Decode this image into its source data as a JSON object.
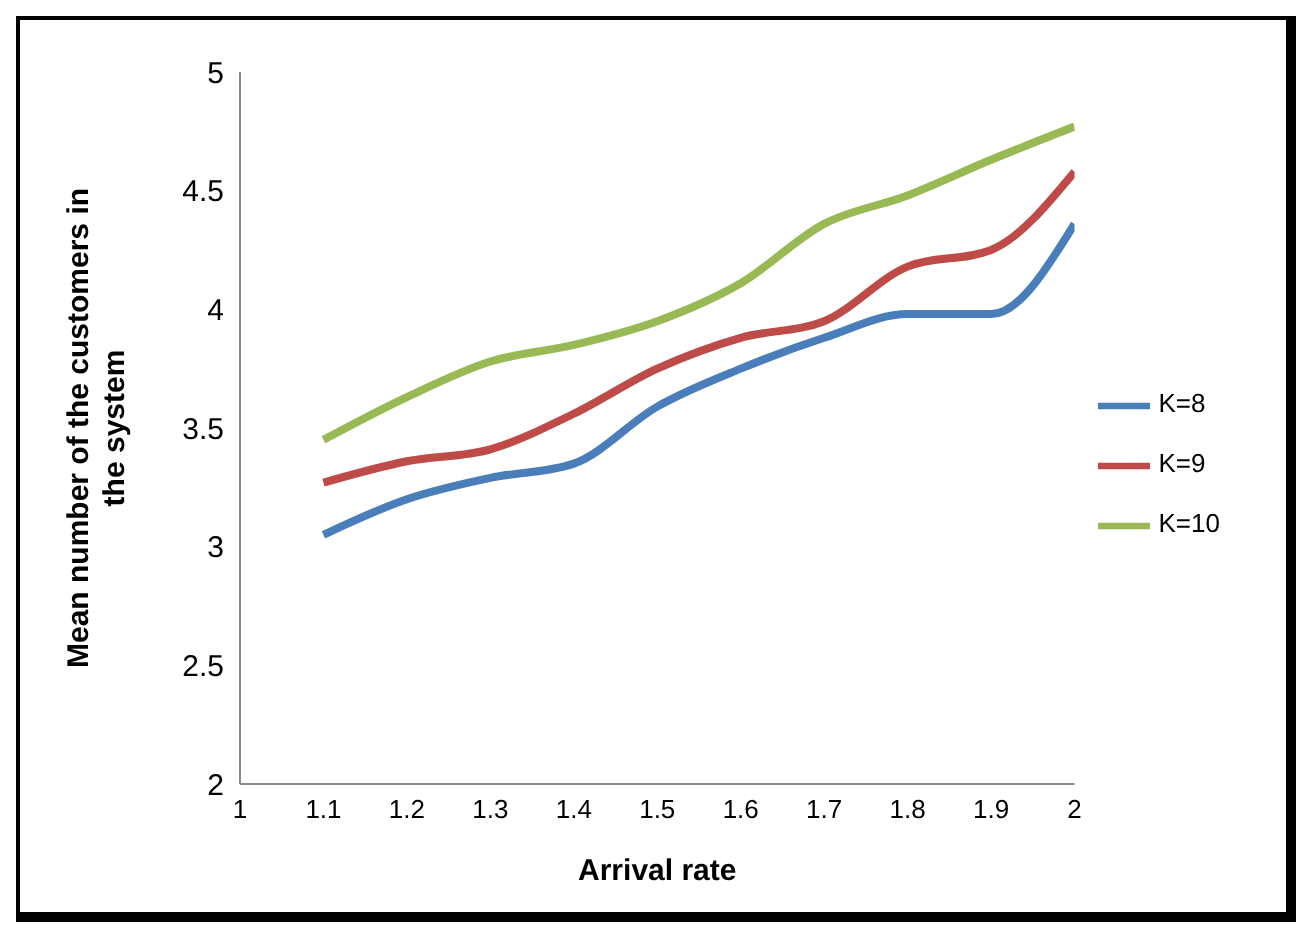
{
  "chart_data": {
    "type": "line",
    "xlabel": "Arrival rate",
    "ylabel": "Mean number of the customers in the system",
    "x": [
      1.1,
      1.2,
      1.3,
      1.4,
      1.5,
      1.6,
      1.7,
      1.8,
      1.9,
      2
    ],
    "series": [
      {
        "name": "K=8",
        "color": "#4a7ebb",
        "values": [
          3.05,
          3.2,
          3.29,
          3.35,
          3.59,
          3.75,
          3.88,
          3.98,
          3.98,
          4.36
        ]
      },
      {
        "name": "K=9",
        "color": "#be4b48",
        "values": [
          3.27,
          3.36,
          3.41,
          3.56,
          3.75,
          3.88,
          3.95,
          4.18,
          4.25,
          4.58
        ]
      },
      {
        "name": "K=10",
        "color": "#98b954",
        "values": [
          3.45,
          3.63,
          3.78,
          3.85,
          3.95,
          4.11,
          4.36,
          4.48,
          4.63,
          4.77
        ]
      }
    ],
    "xlim": [
      1,
      2
    ],
    "xticks": [
      1,
      1.1,
      1.2,
      1.3,
      1.4,
      1.5,
      1.6,
      1.7,
      1.8,
      1.9,
      2
    ],
    "ylim": [
      2,
      5
    ],
    "yticks": [
      2,
      2.5,
      3,
      3.5,
      4,
      4.5,
      5
    ],
    "grid": false,
    "legend": "right",
    "marker": "none",
    "line_style": "solid"
  }
}
